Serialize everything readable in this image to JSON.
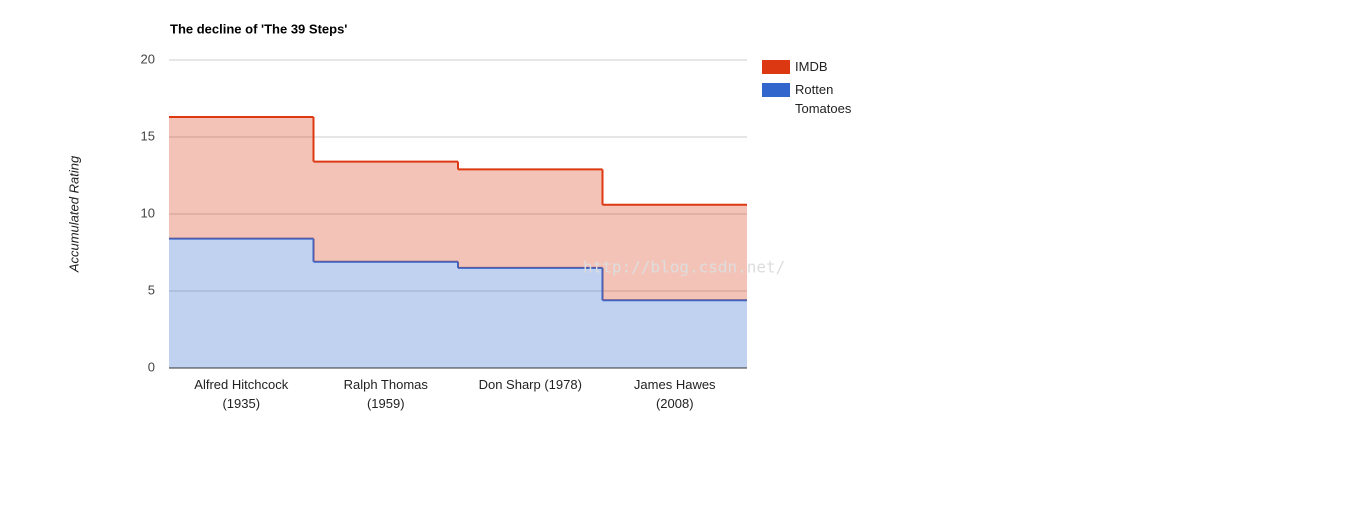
{
  "chart_data": {
    "type": "stepped-area",
    "title": "The decline of 'The 39 Steps'",
    "y_label": "Accumulated Rating",
    "categories": [
      "Alfred Hitchcock (1935)",
      "Ralph Thomas (1959)",
      "Don Sharp (1978)",
      "James Hawes (2008)"
    ],
    "series": [
      {
        "name": "Rotten Tomatoes",
        "color": "#3366cc",
        "values": [
          8.4,
          6.9,
          6.5,
          4.4
        ]
      },
      {
        "name": "IMDB",
        "color": "#dc3912",
        "values": [
          7.9,
          6.5,
          6.4,
          6.2
        ]
      }
    ],
    "stacked": true,
    "ylim": [
      0,
      20
    ],
    "yticks": [
      0,
      5,
      10,
      15,
      20
    ],
    "grid": true,
    "legend": "right",
    "watermark": "http://blog.csdn.net/"
  }
}
